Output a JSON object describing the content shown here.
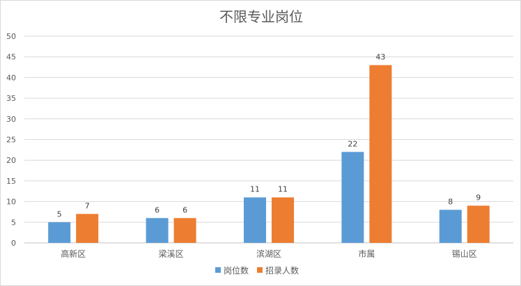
{
  "chart_data": {
    "type": "bar",
    "title": "不限专业岗位",
    "xlabel": "",
    "ylabel": "",
    "categories": [
      "高新区",
      "梁溪区",
      "滨湖区",
      "市属",
      "锡山区"
    ],
    "series": [
      {
        "name": "岗位数",
        "values": [
          5,
          6,
          11,
          22,
          8
        ],
        "color": "#5b9bd5"
      },
      {
        "name": "招录人数",
        "values": [
          7,
          6,
          11,
          43,
          9
        ],
        "color": "#ed7d31"
      }
    ],
    "ylim": [
      0,
      50
    ],
    "yticks": [
      0,
      5,
      10,
      15,
      20,
      25,
      30,
      35,
      40,
      45,
      50
    ],
    "grid": true,
    "legend_position": "bottom",
    "data_labels": true
  }
}
